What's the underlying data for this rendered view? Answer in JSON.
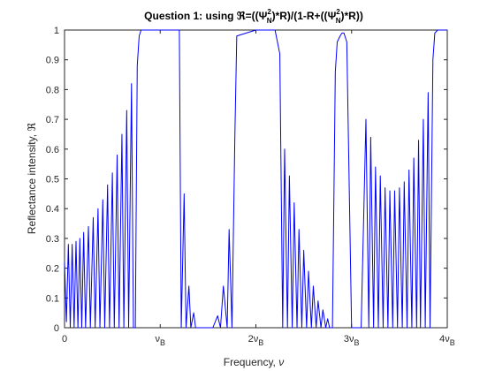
{
  "colors": {
    "line": "#0000ff",
    "axis": "#262626",
    "background": "#ffffff"
  },
  "chart_data": {
    "type": "line",
    "title": {
      "prefix": "Question 1: using ",
      "symbol": "ℜ",
      "middle1": "=((",
      "psi": "Ψ",
      "sup": "2",
      "sub": "N",
      "middle2": ")*R)/(1-R+((",
      "end": ")*R))"
    },
    "xlabel": {
      "text": "Frequency, ",
      "symbol": "ν"
    },
    "ylabel": {
      "text": "Reflectance intensity, ",
      "symbol": "ℜ"
    },
    "xlim": [
      0,
      4
    ],
    "ylim": [
      0,
      1
    ],
    "x_ticks": [
      {
        "value": 0,
        "main": "0",
        "sub": ""
      },
      {
        "value": 1,
        "main": "ν",
        "sub": "B"
      },
      {
        "value": 2,
        "main": "2ν",
        "sub": "B"
      },
      {
        "value": 3,
        "main": "3ν",
        "sub": "B"
      },
      {
        "value": 4,
        "main": "4ν",
        "sub": "B"
      }
    ],
    "y_ticks": [
      {
        "value": 0,
        "label": "0"
      },
      {
        "value": 0.1,
        "label": "0.1"
      },
      {
        "value": 0.2,
        "label": "0.2"
      },
      {
        "value": 0.3,
        "label": "0.3"
      },
      {
        "value": 0.4,
        "label": "0.4"
      },
      {
        "value": 0.5,
        "label": "0.5"
      },
      {
        "value": 0.6,
        "label": "0.6"
      },
      {
        "value": 0.7,
        "label": "0.7"
      },
      {
        "value": 0.8,
        "label": "0.8"
      },
      {
        "value": 0.9,
        "label": "0.9"
      },
      {
        "value": 1,
        "label": "1"
      }
    ],
    "grid": false,
    "series": [
      {
        "x": [
          0,
          0.02,
          0.04,
          0.06,
          0.08,
          0.1,
          0.12,
          0.14,
          0.16,
          0.18,
          0.2,
          0.22,
          0.25,
          0.27,
          0.3,
          0.32,
          0.35,
          0.37,
          0.4,
          0.42,
          0.45,
          0.47,
          0.5,
          0.52,
          0.55,
          0.57,
          0.6,
          0.62,
          0.65,
          0.67,
          0.7,
          0.72,
          0.74,
          0.76,
          0.78,
          0.8,
          0.83,
          0.9,
          1.0,
          1.1,
          1.2,
          1.22,
          1.25,
          1.27,
          1.3,
          1.32,
          1.35,
          1.37,
          1.4,
          1.45,
          1.5,
          1.55,
          1.6,
          1.63,
          1.66,
          1.7,
          1.72,
          1.75,
          1.78,
          1.8,
          2.0,
          2.1,
          2.2,
          2.25,
          2.28,
          2.3,
          2.33,
          2.35,
          2.38,
          2.4,
          2.43,
          2.45,
          2.48,
          2.5,
          2.53,
          2.55,
          2.58,
          2.6,
          2.63,
          2.65,
          2.68,
          2.7,
          2.73,
          2.75,
          2.77,
          2.78,
          2.8,
          2.83,
          2.85,
          2.88,
          2.9,
          2.92,
          2.95,
          3.0,
          3.05,
          3.1,
          3.15,
          3.18,
          3.2,
          3.23,
          3.25,
          3.28,
          3.3,
          3.33,
          3.35,
          3.38,
          3.4,
          3.43,
          3.45,
          3.48,
          3.5,
          3.53,
          3.55,
          3.58,
          3.6,
          3.63,
          3.65,
          3.68,
          3.7,
          3.72,
          3.75,
          3.77,
          3.8,
          3.82,
          3.85,
          3.87,
          3.9,
          3.93,
          3.96,
          4.0
        ],
        "y": [
          0.22,
          0.02,
          0.28,
          0.0,
          0.28,
          0.0,
          0.29,
          0.0,
          0.3,
          0.0,
          0.32,
          0.0,
          0.34,
          0.0,
          0.37,
          0.0,
          0.4,
          0.0,
          0.43,
          0.0,
          0.48,
          0.0,
          0.52,
          0.0,
          0.58,
          0.0,
          0.65,
          0.0,
          0.73,
          0.0,
          0.82,
          0.0,
          0.0,
          0.88,
          0.98,
          1.0,
          1.0,
          1.0,
          1.0,
          1.0,
          1.0,
          0.0,
          0.45,
          0.0,
          0.14,
          0.0,
          0.05,
          0.0,
          0.0,
          0.0,
          0.0,
          0.0,
          0.04,
          0.0,
          0.14,
          0.0,
          0.33,
          0.0,
          0.64,
          0.98,
          1.0,
          1.0,
          1.0,
          0.92,
          0.0,
          0.6,
          0.0,
          0.51,
          0.0,
          0.42,
          0.0,
          0.33,
          0.0,
          0.26,
          0.0,
          0.19,
          0.0,
          0.14,
          0.0,
          0.09,
          0.0,
          0.06,
          0.0,
          0.03,
          0.0,
          0.0,
          0.0,
          0.86,
          0.96,
          0.98,
          0.99,
          0.99,
          0.96,
          0.0,
          0.0,
          0.0,
          0.7,
          0.0,
          0.64,
          0.0,
          0.54,
          0.0,
          0.51,
          0.0,
          0.47,
          0.0,
          0.46,
          0.0,
          0.46,
          0.0,
          0.47,
          0.0,
          0.49,
          0.0,
          0.53,
          0.0,
          0.57,
          0.0,
          0.63,
          0.0,
          0.7,
          0.0,
          0.79,
          0.0,
          0.9,
          0.99,
          1.0,
          1.0,
          1.0,
          1.0
        ]
      }
    ]
  }
}
